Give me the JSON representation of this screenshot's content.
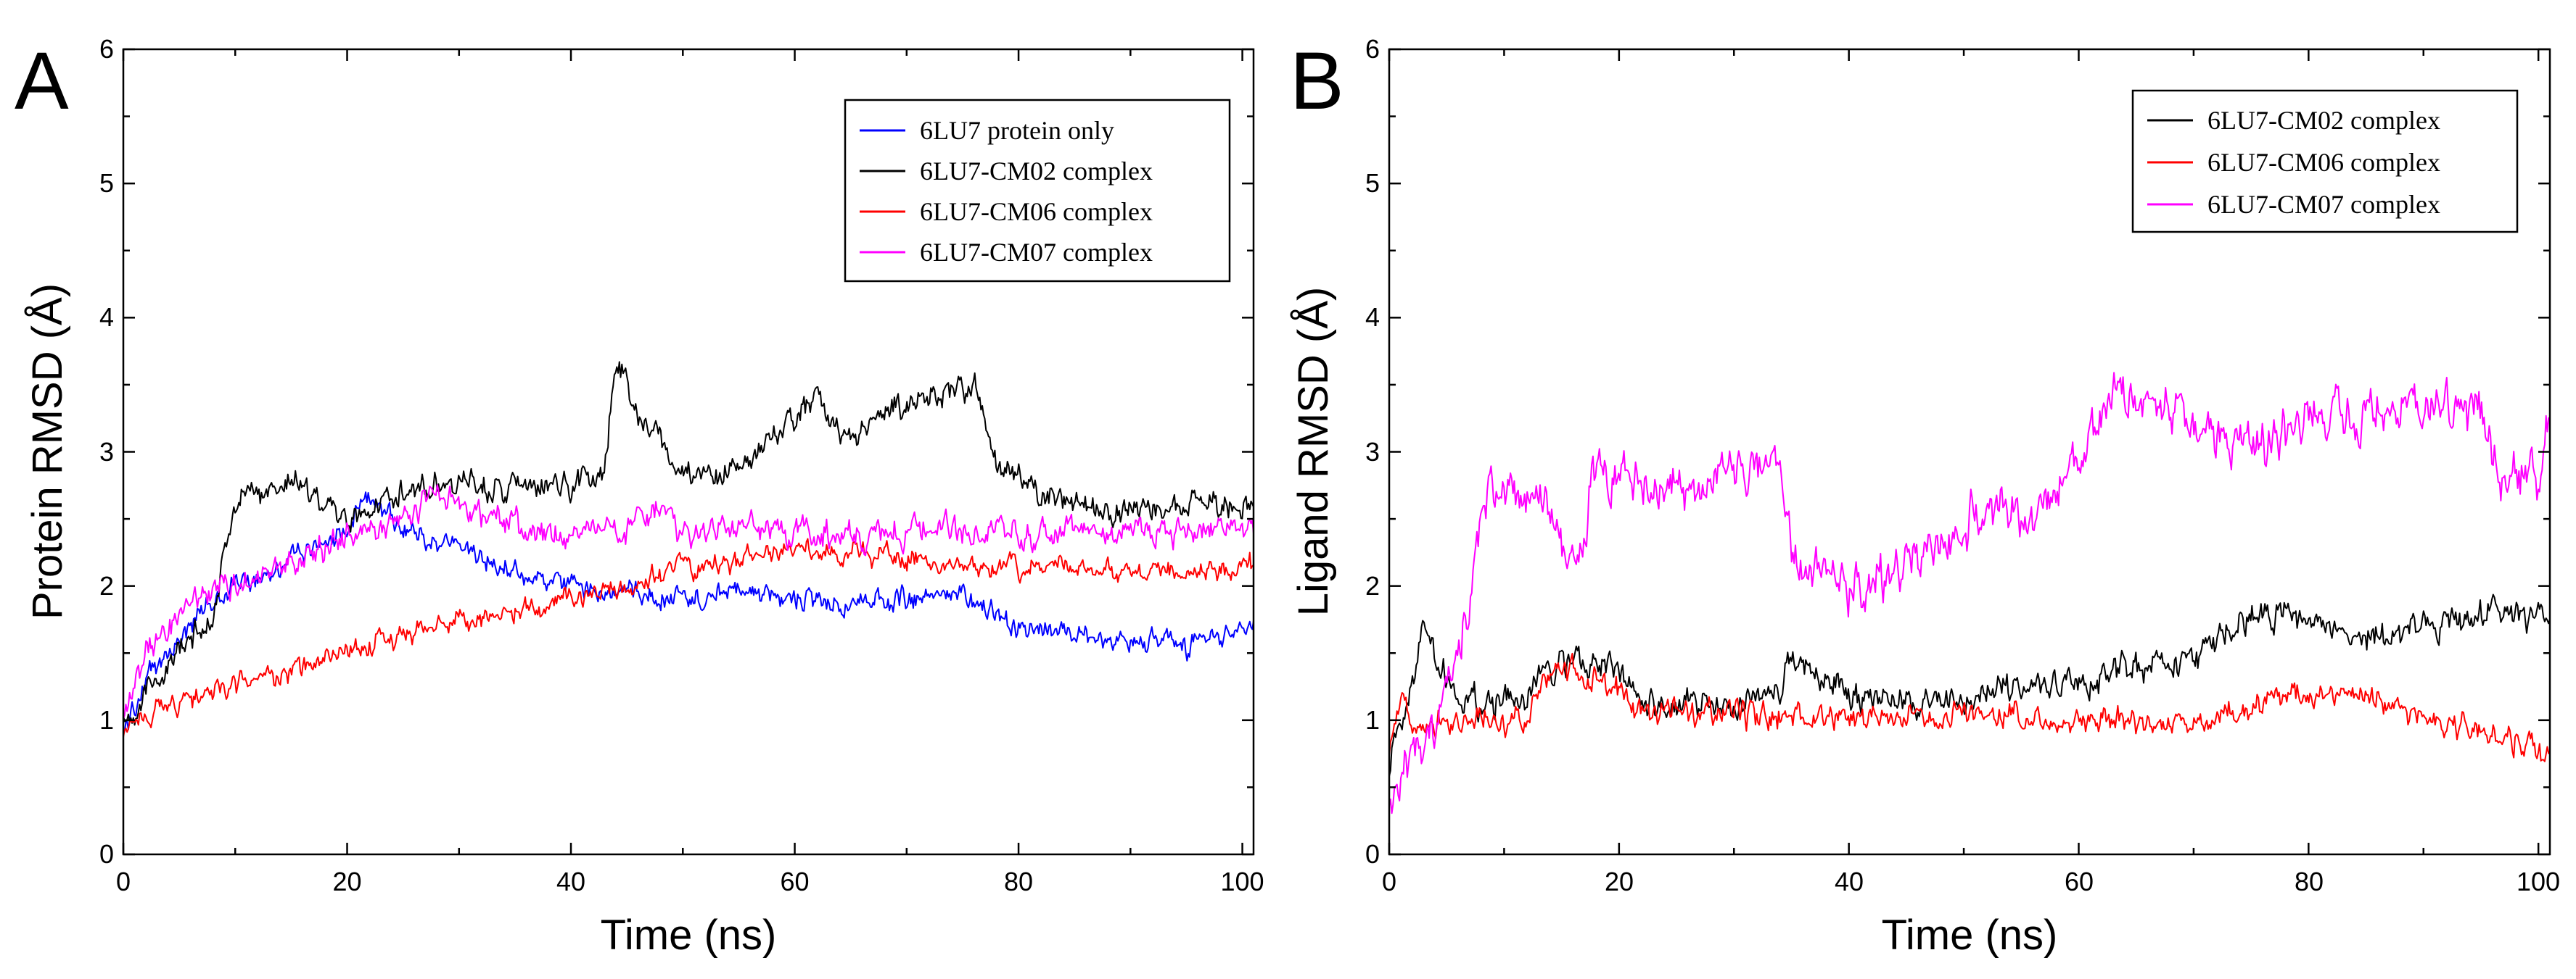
{
  "chart_data": [
    {
      "type": "line",
      "panel_label": "A",
      "xlabel": "Time (ns)",
      "ylabel": "Protein RMSD (Å)",
      "xlim": [
        0,
        101
      ],
      "ylim": [
        0,
        6
      ],
      "x_ticks": [
        "0",
        "20",
        "40",
        "60",
        "80",
        "100"
      ],
      "y_ticks": [
        "0",
        "1",
        "2",
        "3",
        "4",
        "5",
        "6"
      ],
      "grid": false,
      "legend_position": "top-right",
      "series": [
        {
          "name": "6LU7 protein only",
          "color": "#0000ff",
          "noise": 0.1,
          "x": [
            0,
            2,
            5,
            8,
            10,
            15,
            20,
            22,
            25,
            30,
            35,
            40,
            45,
            50,
            55,
            60,
            65,
            70,
            75,
            80,
            85,
            90,
            95,
            100,
            101
          ],
          "y": [
            0.9,
            1.3,
            1.6,
            1.9,
            2.0,
            2.2,
            2.4,
            2.7,
            2.4,
            2.3,
            2.1,
            2.0,
            1.95,
            1.9,
            1.95,
            1.9,
            1.85,
            1.9,
            1.95,
            1.7,
            1.65,
            1.6,
            1.55,
            1.7,
            1.7
          ]
        },
        {
          "name": "6LU7-CM02 complex",
          "color": "#000000",
          "noise": 0.12,
          "x": [
            0,
            2,
            5,
            8,
            10,
            12,
            15,
            20,
            25,
            30,
            35,
            40,
            43,
            44,
            46,
            48,
            50,
            55,
            58,
            62,
            65,
            68,
            72,
            76,
            78,
            80,
            85,
            90,
            95,
            100,
            101
          ],
          "y": [
            1.0,
            1.2,
            1.5,
            1.8,
            2.6,
            2.7,
            2.8,
            2.5,
            2.7,
            2.8,
            2.7,
            2.75,
            2.9,
            3.7,
            3.3,
            3.1,
            2.8,
            2.85,
            3.1,
            3.4,
            3.1,
            3.3,
            3.4,
            3.5,
            2.9,
            2.8,
            2.6,
            2.55,
            2.6,
            2.6,
            2.6
          ]
        },
        {
          "name": "6LU7-CM06 complex",
          "color": "#ff0000",
          "noise": 0.1,
          "x": [
            0,
            2,
            5,
            8,
            10,
            15,
            20,
            25,
            30,
            35,
            40,
            45,
            50,
            55,
            60,
            65,
            70,
            75,
            80,
            85,
            90,
            95,
            100,
            101
          ],
          "y": [
            0.9,
            1.05,
            1.15,
            1.2,
            1.25,
            1.35,
            1.5,
            1.65,
            1.75,
            1.8,
            1.9,
            2.0,
            2.15,
            2.2,
            2.3,
            2.25,
            2.2,
            2.15,
            2.15,
            2.15,
            2.1,
            2.1,
            2.15,
            2.15
          ]
        },
        {
          "name": "6LU7-CM07 complex",
          "color": "#ff00ff",
          "noise": 0.13,
          "x": [
            0,
            2,
            5,
            8,
            10,
            15,
            20,
            25,
            28,
            30,
            35,
            40,
            45,
            48,
            50,
            55,
            60,
            65,
            70,
            75,
            80,
            85,
            90,
            95,
            100,
            101
          ],
          "y": [
            1.0,
            1.5,
            1.8,
            2.0,
            2.0,
            2.2,
            2.35,
            2.5,
            2.7,
            2.6,
            2.45,
            2.4,
            2.4,
            2.6,
            2.4,
            2.45,
            2.4,
            2.4,
            2.4,
            2.4,
            2.4,
            2.4,
            2.45,
            2.4,
            2.45,
            2.45
          ]
        }
      ]
    },
    {
      "type": "line",
      "panel_label": "B",
      "xlabel": "Time (ns)",
      "ylabel": "Ligand RMSD (Å)",
      "xlim": [
        0,
        101
      ],
      "ylim": [
        0,
        6
      ],
      "x_ticks": [
        "0",
        "20",
        "40",
        "60",
        "80",
        "100"
      ],
      "y_ticks": [
        "0",
        "1",
        "2",
        "3",
        "4",
        "5",
        "6"
      ],
      "grid": false,
      "legend_position": "top-right",
      "series": [
        {
          "name": "6LU7-CM02 complex",
          "color": "#000000",
          "noise": 0.14,
          "x": [
            0,
            1,
            3,
            5,
            8,
            12,
            14,
            18,
            20,
            22,
            30,
            34,
            35,
            40,
            45,
            50,
            55,
            60,
            65,
            70,
            75,
            80,
            85,
            90,
            95,
            100,
            101
          ],
          "y": [
            0.7,
            1.0,
            1.7,
            1.3,
            1.1,
            1.15,
            1.45,
            1.4,
            1.35,
            1.1,
            1.1,
            1.2,
            1.5,
            1.2,
            1.1,
            1.15,
            1.2,
            1.3,
            1.4,
            1.45,
            1.8,
            1.75,
            1.6,
            1.7,
            1.8,
            1.8,
            1.8
          ]
        },
        {
          "name": "6LU7-CM06 complex",
          "color": "#ff0000",
          "noise": 0.12,
          "x": [
            0,
            1,
            3,
            5,
            8,
            12,
            14,
            18,
            20,
            22,
            30,
            40,
            50,
            55,
            60,
            65,
            70,
            75,
            80,
            85,
            90,
            95,
            100,
            101
          ],
          "y": [
            0.8,
            1.1,
            1.0,
            1.0,
            1.0,
            1.0,
            1.4,
            1.3,
            1.2,
            1.05,
            1.05,
            1.0,
            1.05,
            1.05,
            1.0,
            1.0,
            0.95,
            1.1,
            1.2,
            1.2,
            1.0,
            0.95,
            0.75,
            0.75
          ]
        },
        {
          "name": "6LU7-CM07 complex",
          "color": "#ff00ff",
          "noise": 0.22,
          "x": [
            0,
            1,
            3,
            5,
            7,
            8,
            10,
            14,
            16,
            18,
            22,
            25,
            30,
            34,
            35,
            40,
            45,
            48,
            52,
            55,
            57,
            60,
            63,
            65,
            70,
            75,
            80,
            85,
            90,
            95,
            97,
            100,
            101
          ],
          "y": [
            0.4,
            0.6,
            0.8,
            1.2,
            1.8,
            2.6,
            2.7,
            2.6,
            2.1,
            2.8,
            2.75,
            2.75,
            2.85,
            2.85,
            2.2,
            2.0,
            2.2,
            2.3,
            2.6,
            2.5,
            2.6,
            2.9,
            3.5,
            3.4,
            3.2,
            3.0,
            3.2,
            3.3,
            3.4,
            3.3,
            2.8,
            2.8,
            3.4
          ]
        }
      ]
    }
  ]
}
